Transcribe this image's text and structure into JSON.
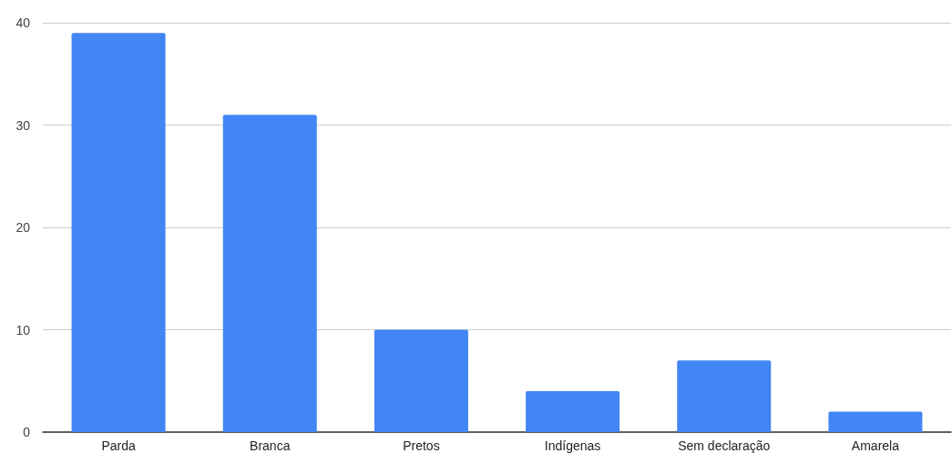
{
  "chart_data": {
    "type": "bar",
    "categories": [
      "Parda",
      "Branca",
      "Pretos",
      "Indígenas",
      "Sem declaração",
      "Amarela"
    ],
    "values": [
      39,
      31,
      10,
      4,
      7,
      2
    ],
    "color": "#4285f4",
    "ylim": [
      0,
      40
    ],
    "yticks": [
      0,
      10,
      20,
      30,
      40
    ],
    "grid": "y"
  }
}
